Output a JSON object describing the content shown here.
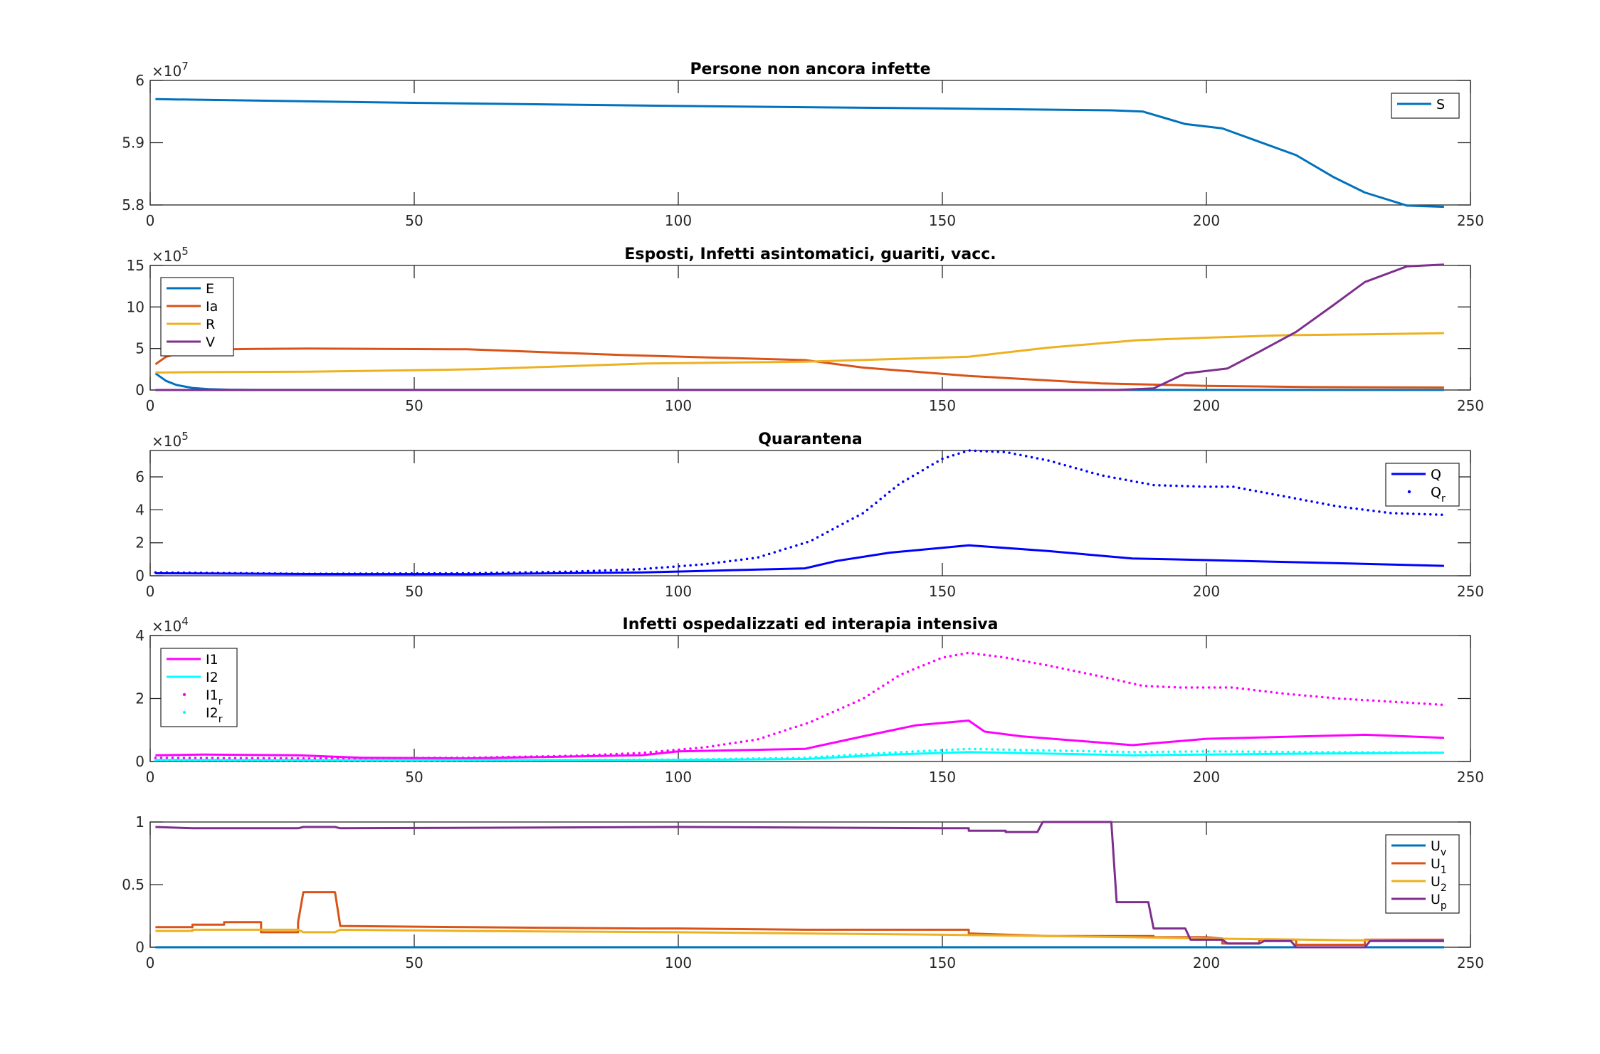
{
  "chart_data": [
    {
      "type": "line",
      "title": "Persone non ancora infette",
      "xlim": [
        0,
        250
      ],
      "ylim": [
        58000000,
        60000000
      ],
      "xticks": [
        0,
        50,
        100,
        150,
        200,
        250
      ],
      "yticks": [
        58000000,
        59000000,
        60000000
      ],
      "ytick_labels": [
        "5.8",
        "5.9",
        "6"
      ],
      "multiplier_base": "×10",
      "multiplier_exp": "7",
      "legend_position": "top-right",
      "grid": false,
      "series": [
        {
          "name": "S",
          "color": "#0072BD",
          "style": "solid",
          "x": [
            1,
            50,
            100,
            150,
            182,
            188,
            196,
            203,
            217,
            224,
            230,
            238,
            245
          ],
          "y": [
            59700000,
            59640000,
            59590000,
            59550000,
            59520000,
            59500000,
            59300000,
            59230000,
            58800000,
            58450000,
            58200000,
            57990000,
            57970000
          ]
        }
      ]
    },
    {
      "type": "line",
      "title": "Esposti, Infetti asintomatici, guariti, vacc.",
      "xlim": [
        0,
        250
      ],
      "ylim": [
        0,
        1500000
      ],
      "xticks": [
        0,
        50,
        100,
        150,
        200,
        250
      ],
      "yticks": [
        0,
        500000,
        1000000,
        1500000
      ],
      "ytick_labels": [
        "0",
        "5",
        "10",
        "15"
      ],
      "multiplier_base": "×10",
      "multiplier_exp": "5",
      "legend_position": "top-left",
      "grid": false,
      "series": [
        {
          "name": "E",
          "color": "#0072BD",
          "style": "solid",
          "x": [
            1,
            3,
            5,
            8,
            11,
            15,
            20,
            50,
            100,
            150,
            200,
            245
          ],
          "y": [
            200000,
            110000,
            60000,
            25000,
            10000,
            3000,
            1000,
            500,
            500,
            500,
            500,
            500
          ]
        },
        {
          "name": "Ia",
          "color": "#D95319",
          "style": "solid",
          "x": [
            1,
            3,
            6,
            10,
            15,
            20,
            30,
            60,
            90,
            124,
            135,
            155,
            180,
            200,
            220,
            245
          ],
          "y": [
            310000,
            400000,
            450000,
            480000,
            490000,
            495000,
            500000,
            490000,
            420000,
            360000,
            270000,
            170000,
            80000,
            50000,
            35000,
            30000
          ]
        },
        {
          "name": "R",
          "color": "#EDB120",
          "style": "solid",
          "x": [
            1,
            10,
            30,
            62,
            94,
            124,
            155,
            170,
            187,
            200,
            215,
            230,
            245
          ],
          "y": [
            210000,
            215000,
            220000,
            250000,
            320000,
            340000,
            400000,
            510000,
            600000,
            630000,
            660000,
            670000,
            685000
          ]
        },
        {
          "name": "V",
          "color": "#7E2F8E",
          "style": "solid",
          "x": [
            1,
            100,
            183,
            190,
            196,
            204,
            210,
            217,
            224,
            230,
            238,
            245
          ],
          "y": [
            0,
            0,
            0,
            20000,
            200000,
            260000,
            460000,
            700000,
            1020000,
            1300000,
            1490000,
            1510000
          ]
        }
      ]
    },
    {
      "type": "line",
      "title": "Quarantena",
      "xlim": [
        0,
        250
      ],
      "ylim": [
        0,
        760000
      ],
      "xticks": [
        0,
        50,
        100,
        150,
        200,
        250
      ],
      "yticks": [
        0,
        200000,
        400000,
        600000
      ],
      "ytick_labels": [
        "0",
        "2",
        "4",
        "6"
      ],
      "multiplier_base": "×10",
      "multiplier_exp": "5",
      "legend_position": "top-right",
      "grid": false,
      "series": [
        {
          "name": "Q",
          "color": "#0000FF",
          "style": "solid",
          "x": [
            1,
            30,
            60,
            93,
            124,
            130,
            140,
            155,
            170,
            186,
            200,
            220,
            245
          ],
          "y": [
            15000,
            11000,
            10000,
            20000,
            45000,
            90000,
            140000,
            185000,
            150000,
            105000,
            95000,
            80000,
            60000
          ]
        },
        {
          "name": "Qr",
          "color": "#0000FF",
          "style": "dotted",
          "x": [
            1,
            30,
            60,
            80,
            93,
            105,
            115,
            125,
            135,
            142,
            150,
            155,
            162,
            170,
            180,
            190,
            200,
            205,
            215,
            225,
            235,
            245
          ],
          "y": [
            20000,
            12000,
            15000,
            25000,
            40000,
            70000,
            110000,
            210000,
            380000,
            560000,
            710000,
            760000,
            750000,
            700000,
            610000,
            550000,
            540000,
            540000,
            480000,
            420000,
            380000,
            370000
          ]
        }
      ]
    },
    {
      "type": "line",
      "title": "Infetti ospedalizzati ed interapia intensiva",
      "xlim": [
        0,
        250
      ],
      "ylim": [
        0,
        40000
      ],
      "xticks": [
        0,
        50,
        100,
        150,
        200,
        250
      ],
      "yticks": [
        0,
        20000,
        40000
      ],
      "ytick_labels": [
        "0",
        "2",
        "4"
      ],
      "multiplier_base": "×10",
      "multiplier_exp": "4",
      "legend_position": "top-left",
      "grid": false,
      "series": [
        {
          "name": "I1",
          "color": "#FF00FF",
          "style": "solid",
          "x": [
            1,
            10,
            28,
            40,
            60,
            93,
            100,
            124,
            135,
            145,
            155,
            158,
            165,
            186,
            200,
            230,
            245
          ],
          "y": [
            2000,
            2200,
            2000,
            1200,
            1000,
            2000,
            3200,
            4000,
            8000,
            11500,
            13000,
            9500,
            8000,
            5200,
            7200,
            8500,
            7500
          ]
        },
        {
          "name": "I2",
          "color": "#00FFFF",
          "style": "solid",
          "x": [
            1,
            50,
            100,
            124,
            140,
            155,
            170,
            186,
            200,
            220,
            245
          ],
          "y": [
            500,
            400,
            500,
            800,
            2200,
            3000,
            2500,
            2000,
            2200,
            2500,
            2800
          ]
        },
        {
          "name": "I1r",
          "color": "#FF00FF",
          "style": "dotted",
          "x": [
            1,
            30,
            60,
            80,
            93,
            105,
            115,
            125,
            135,
            142,
            150,
            155,
            162,
            170,
            180,
            188,
            195,
            205,
            215,
            225,
            235,
            245
          ],
          "y": [
            1200,
            1000,
            1200,
            1800,
            2700,
            4500,
            7000,
            12500,
            20000,
            27500,
            33000,
            34500,
            33000,
            30500,
            27000,
            24000,
            23500,
            23500,
            21500,
            20000,
            19000,
            18000
          ]
        },
        {
          "name": "I2r",
          "color": "#00FFFF",
          "style": "dotted",
          "x": [
            1,
            50,
            100,
            124,
            140,
            155,
            170,
            186,
            200,
            220,
            245
          ],
          "y": [
            400,
            300,
            600,
            1200,
            2800,
            4000,
            3500,
            3000,
            3200,
            3000,
            2800
          ]
        }
      ]
    },
    {
      "type": "line",
      "title": "",
      "xlim": [
        0,
        250
      ],
      "ylim": [
        0,
        1
      ],
      "xticks": [
        0,
        50,
        100,
        150,
        200,
        250
      ],
      "yticks": [
        0,
        0.5,
        1
      ],
      "ytick_labels": [
        "0",
        "0.5",
        "1"
      ],
      "multiplier_base": "",
      "multiplier_exp": "",
      "legend_position": "top-right",
      "grid": false,
      "series": [
        {
          "name": "Uv",
          "color": "#0072BD",
          "style": "solid",
          "x": [
            1,
            245
          ],
          "y": [
            0,
            0
          ]
        },
        {
          "name": "U1",
          "color": "#D95319",
          "style": "solid",
          "x": [
            1,
            8,
            8,
            14,
            14,
            21,
            21,
            28,
            28,
            29,
            29,
            35,
            35,
            36,
            36,
            60,
            93,
            100,
            124,
            150,
            155,
            155,
            170,
            186,
            190,
            190,
            200,
            203,
            203,
            210,
            210,
            217,
            217,
            224,
            224,
            230,
            230,
            235,
            235,
            245
          ],
          "y": [
            0.16,
            0.16,
            0.18,
            0.18,
            0.2,
            0.2,
            0.12,
            0.12,
            0.2,
            0.44,
            0.44,
            0.44,
            0.44,
            0.17,
            0.17,
            0.16,
            0.15,
            0.15,
            0.14,
            0.14,
            0.14,
            0.11,
            0.09,
            0.09,
            0.09,
            0.08,
            0.08,
            0.07,
            0.03,
            0.03,
            0.06,
            0.06,
            0.02,
            0.02,
            0.02,
            0.02,
            0.06,
            0.06,
            0.06,
            0.06
          ]
        },
        {
          "name": "U2",
          "color": "#EDB120",
          "style": "solid",
          "x": [
            1,
            8,
            8,
            28,
            29,
            35,
            36,
            60,
            100,
            150,
            186,
            200,
            240,
            245
          ],
          "y": [
            0.13,
            0.13,
            0.14,
            0.14,
            0.12,
            0.12,
            0.14,
            0.13,
            0.12,
            0.1,
            0.08,
            0.07,
            0.05,
            0.05
          ]
        },
        {
          "name": "Up",
          "color": "#7E2F8E",
          "style": "solid",
          "x": [
            1,
            8,
            28,
            29,
            35,
            36,
            100,
            150,
            155,
            155,
            162,
            162,
            168,
            169,
            182,
            183,
            189,
            190,
            196,
            197,
            203,
            204,
            210,
            211,
            216,
            217,
            224,
            225,
            230,
            231,
            245
          ],
          "y": [
            0.96,
            0.95,
            0.95,
            0.96,
            0.96,
            0.95,
            0.96,
            0.95,
            0.95,
            0.93,
            0.93,
            0.92,
            0.92,
            1.0,
            1.0,
            0.36,
            0.36,
            0.15,
            0.15,
            0.06,
            0.06,
            0.03,
            0.03,
            0.05,
            0.05,
            0.0,
            0.0,
            0.0,
            0.0,
            0.05,
            0.05
          ]
        }
      ]
    }
  ],
  "legend_labels": [
    [
      {
        "base": "S",
        "sub": ""
      }
    ],
    [
      {
        "base": "E",
        "sub": ""
      },
      {
        "base": "Ia",
        "sub": ""
      },
      {
        "base": "R",
        "sub": ""
      },
      {
        "base": "V",
        "sub": ""
      }
    ],
    [
      {
        "base": "Q",
        "sub": ""
      },
      {
        "base": "Q",
        "sub": "r"
      }
    ],
    [
      {
        "base": "I1",
        "sub": ""
      },
      {
        "base": "I2",
        "sub": ""
      },
      {
        "base": "I1",
        "sub": "r"
      },
      {
        "base": "I2",
        "sub": "r"
      }
    ],
    [
      {
        "base": "U",
        "sub": "v"
      },
      {
        "base": "U",
        "sub": "1"
      },
      {
        "base": "U",
        "sub": "2"
      },
      {
        "base": "U",
        "sub": "p"
      }
    ]
  ]
}
